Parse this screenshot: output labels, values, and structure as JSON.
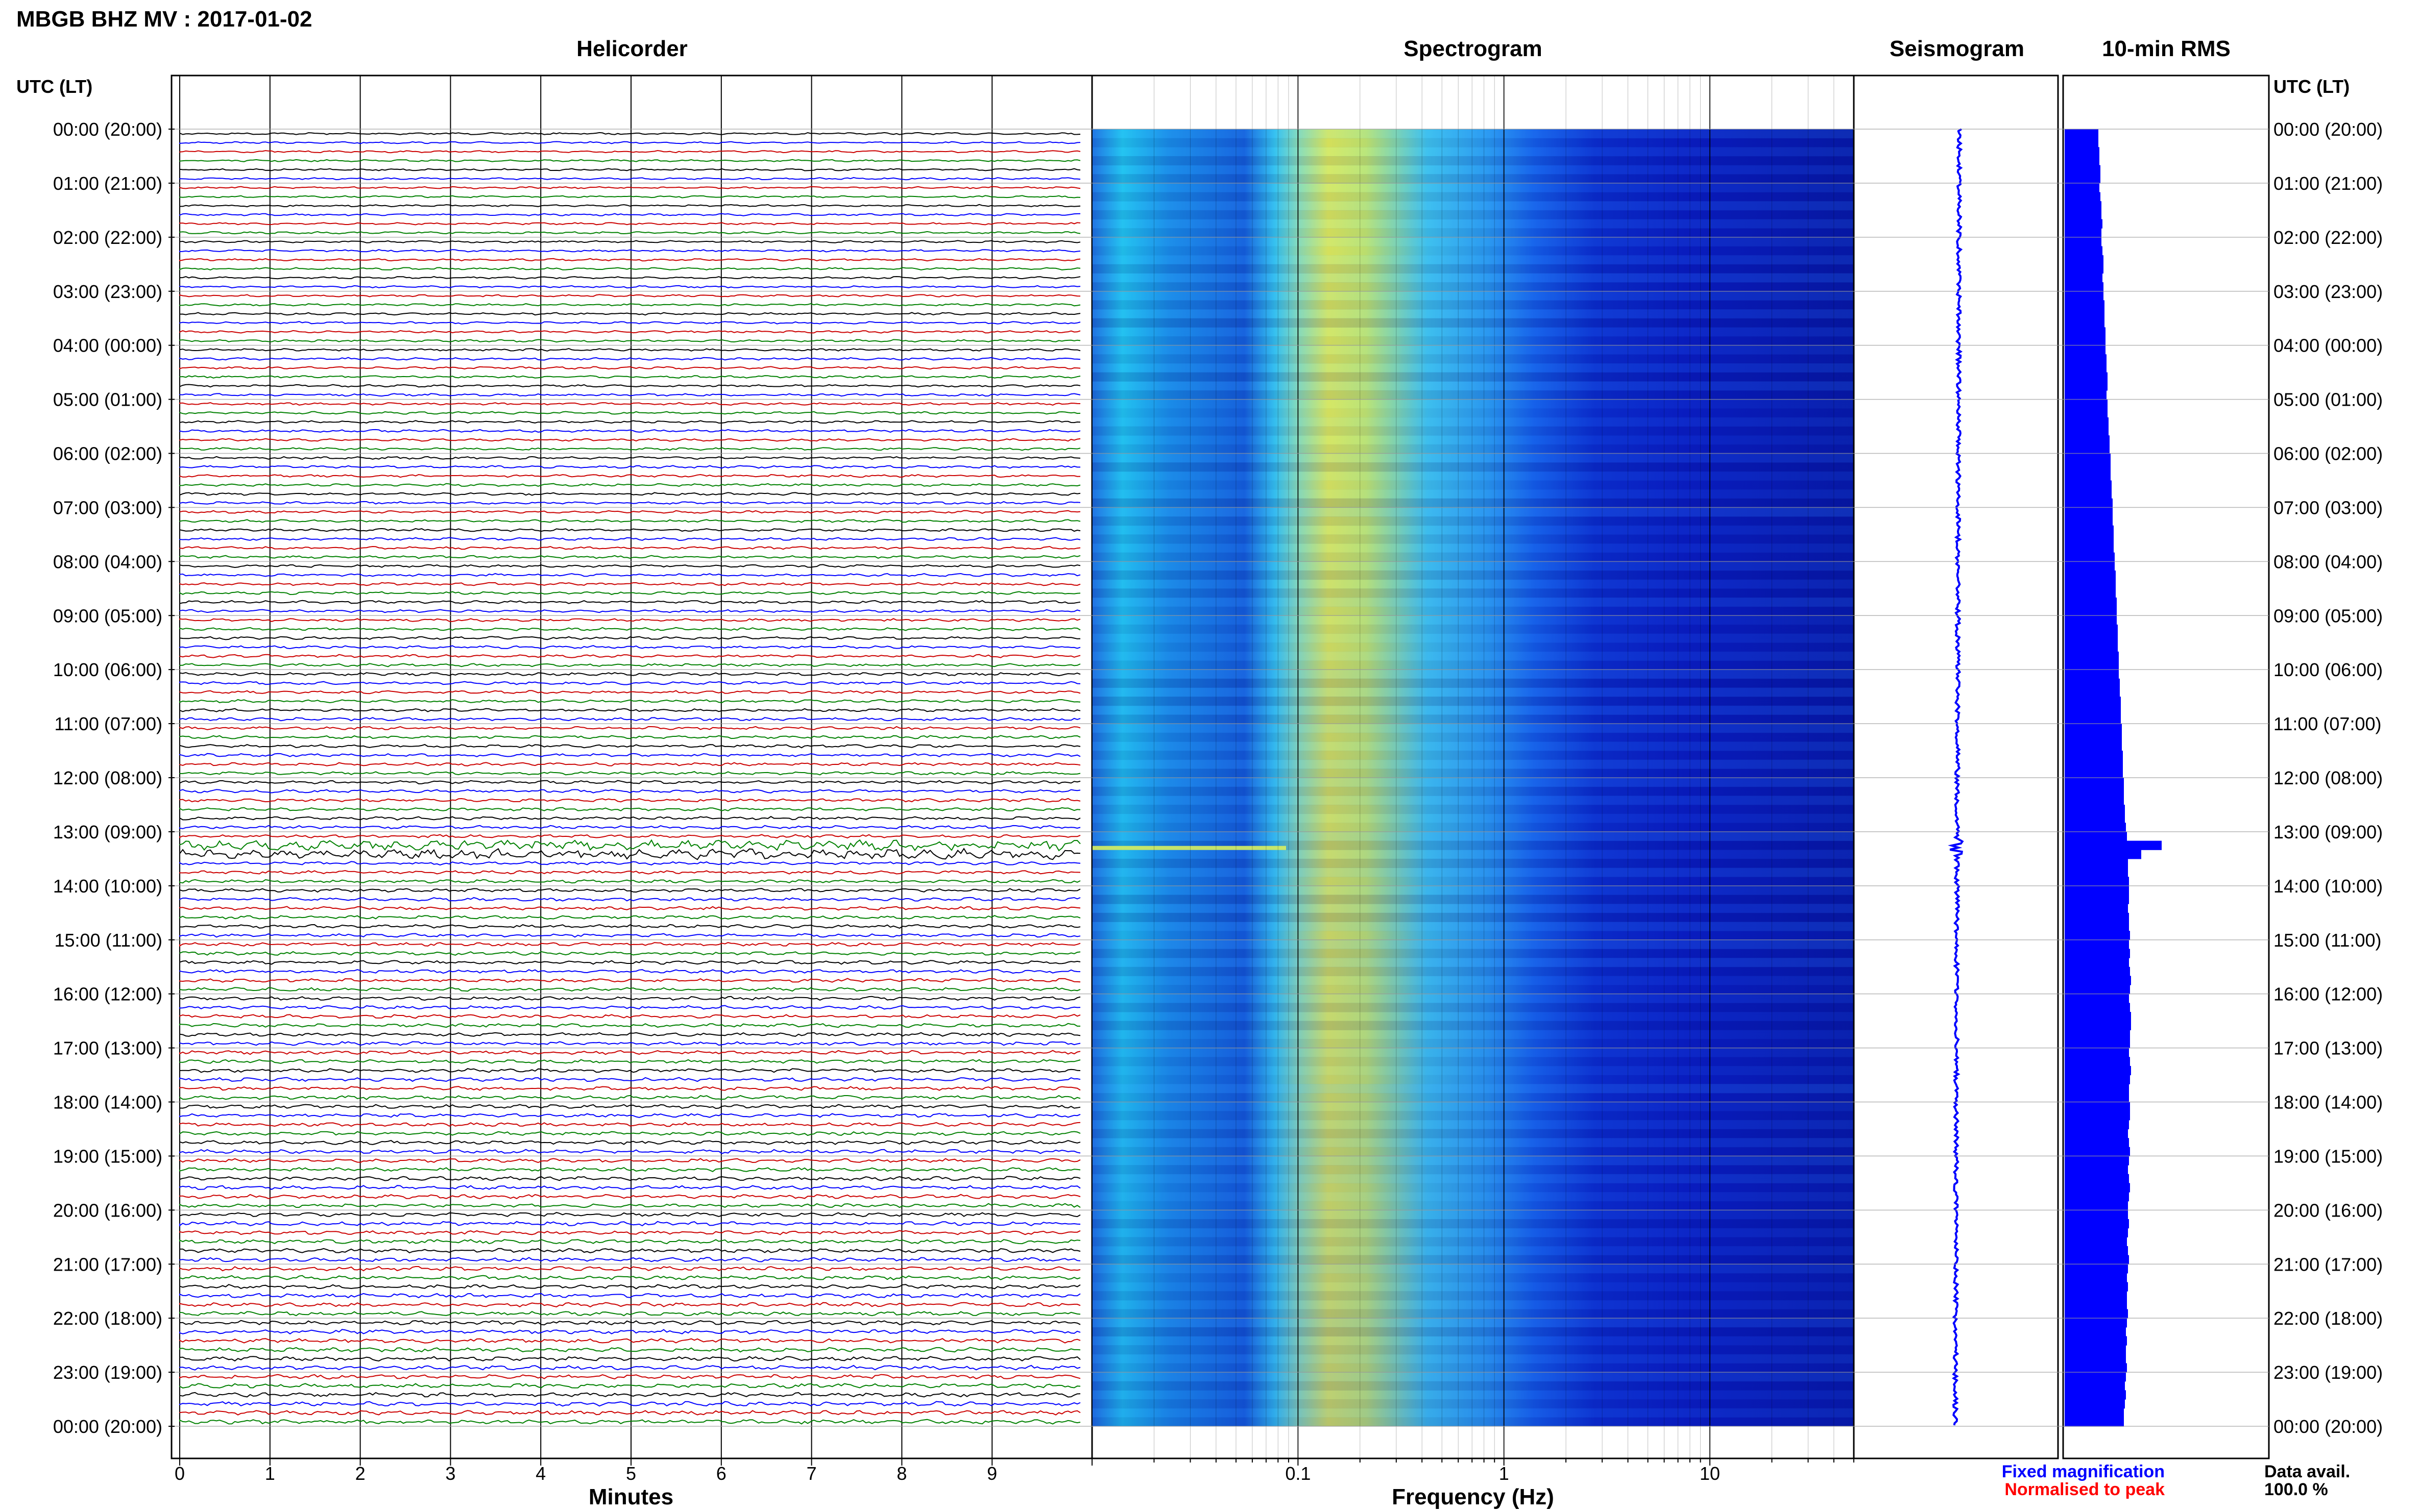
{
  "header": {
    "title": "MBGB BHZ MV : 2017-01-02"
  },
  "panels": {
    "helicorder_title": "Helicorder",
    "spectrogram_title": "Spectrogram",
    "seismogram_title": "Seismogram",
    "rms_title": "10-min RMS"
  },
  "axes": {
    "time_label_left": "UTC (LT)",
    "time_label_right": "UTC (LT)",
    "minutes_label": "Minutes",
    "frequency_label": "Frequency (Hz)"
  },
  "legend": {
    "fixed": "Fixed magnification",
    "normalised": "Normalised to peak",
    "fixed_color": "#0000ff",
    "normalised_color": "#ff0000"
  },
  "availability": {
    "label": "Data avail.",
    "value": "100.0 %"
  },
  "chart_data": [
    {
      "type": "line",
      "name": "helicorder",
      "x_ticks": [
        "0",
        "1",
        "2",
        "3",
        "4",
        "5",
        "6",
        "7",
        "8",
        "9"
      ],
      "x_range": [
        0,
        10
      ],
      "y_ticks": [
        "00:00 (20:00)",
        "01:00 (21:00)",
        "02:00 (22:00)",
        "03:00 (23:00)",
        "04:00 (00:00)",
        "05:00 (01:00)",
        "06:00 (02:00)",
        "07:00 (03:00)",
        "08:00 (04:00)",
        "09:00 (05:00)",
        "10:00 (06:00)",
        "11:00 (07:00)",
        "12:00 (08:00)",
        "13:00 (09:00)",
        "14:00 (10:00)",
        "15:00 (11:00)",
        "16:00 (12:00)",
        "17:00 (13:00)",
        "18:00 (14:00)",
        "19:00 (15:00)",
        "20:00 (16:00)",
        "21:00 (17:00)",
        "22:00 (18:00)",
        "23:00 (19:00)",
        "00:00 (20:00)"
      ],
      "trace_colors": [
        "#000000",
        "#0000ff",
        "#cc0000",
        "#008000"
      ],
      "trace_count": 144,
      "event_hour": 13.3
    },
    {
      "type": "heatmap",
      "name": "spectrogram",
      "x_scale": "log",
      "x_range": [
        0.01,
        50
      ],
      "x_ticks": [
        0.1,
        1,
        10
      ],
      "peak_frequency_hz": 0.2
    },
    {
      "type": "line",
      "name": "seismogram",
      "event_hour": 13.3
    },
    {
      "type": "bar",
      "name": "10-min RMS",
      "color": "#0000ff",
      "intervals": 144,
      "values": [
        0.33,
        0.33,
        0.34,
        0.34,
        0.35,
        0.35,
        0.34,
        0.35,
        0.36,
        0.36,
        0.37,
        0.36,
        0.36,
        0.37,
        0.38,
        0.38,
        0.37,
        0.38,
        0.38,
        0.39,
        0.39,
        0.39,
        0.4,
        0.4,
        0.4,
        0.41,
        0.41,
        0.42,
        0.42,
        0.41,
        0.42,
        0.42,
        0.43,
        0.43,
        0.44,
        0.44,
        0.45,
        0.45,
        0.45,
        0.46,
        0.46,
        0.47,
        0.47,
        0.47,
        0.48,
        0.48,
        0.48,
        0.49,
        0.49,
        0.5,
        0.5,
        0.5,
        0.51,
        0.51,
        0.51,
        0.52,
        0.52,
        0.52,
        0.53,
        0.53,
        0.53,
        0.54,
        0.54,
        0.55,
        0.55,
        0.55,
        0.56,
        0.56,
        0.56,
        0.57,
        0.57,
        0.57,
        0.58,
        0.58,
        0.58,
        0.59,
        0.59,
        0.6,
        0.61,
        0.95,
        0.75,
        0.62,
        0.62,
        0.63,
        0.63,
        0.63,
        0.62,
        0.63,
        0.63,
        0.64,
        0.63,
        0.64,
        0.63,
        0.64,
        0.65,
        0.64,
        0.63,
        0.64,
        0.65,
        0.65,
        0.64,
        0.64,
        0.63,
        0.64,
        0.65,
        0.64,
        0.63,
        0.63,
        0.64,
        0.64,
        0.63,
        0.62,
        0.63,
        0.64,
        0.63,
        0.62,
        0.63,
        0.64,
        0.63,
        0.62,
        0.62,
        0.63,
        0.62,
        0.61,
        0.62,
        0.63,
        0.62,
        0.61,
        0.62,
        0.61,
        0.61,
        0.62,
        0.61,
        0.6,
        0.61,
        0.6,
        0.6,
        0.61,
        0.6,
        0.59,
        0.6,
        0.59,
        0.58,
        0.58
      ]
    }
  ]
}
